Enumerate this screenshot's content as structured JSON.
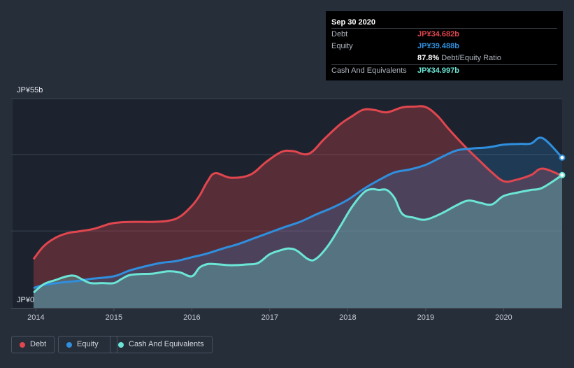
{
  "tooltip": {
    "date": "Sep 30 2020",
    "debt_label": "Debt",
    "debt_value": "JP¥34.682b",
    "equity_label": "Equity",
    "equity_value": "JP¥39.488b",
    "ratio_value": "87.8%",
    "ratio_label": "Debt/Equity Ratio",
    "cash_label": "Cash And Equivalents",
    "cash_value": "JP¥34.997b"
  },
  "legend": {
    "debt": "Debt",
    "equity": "Equity",
    "cash": "Cash And Equivalents"
  },
  "colors": {
    "debt": "#e0464e",
    "equity": "#2f8fde",
    "cash": "#6be6d6",
    "background": "#262e3a"
  },
  "chart_data": {
    "type": "area",
    "title": "",
    "xlabel": "",
    "ylabel": "",
    "ylim": [
      0,
      55
    ],
    "y_unit": "JP¥ billions",
    "y_tick_labels": [
      "JP¥0",
      "JP¥55b"
    ],
    "x_ticks": [
      2014,
      2015,
      2016,
      2017,
      2018,
      2019,
      2020
    ],
    "x_tick_labels": [
      "2014",
      "2015",
      "2016",
      "2017",
      "2018",
      "2019",
      "2020"
    ],
    "xlim": [
      2013.97,
      2020.75
    ],
    "series": [
      {
        "name": "Debt",
        "x": [
          2013.97,
          2014.1,
          2014.25,
          2014.4,
          2014.55,
          2014.75,
          2014.95,
          2015.1,
          2015.3,
          2015.5,
          2015.7,
          2015.85,
          2016.0,
          2016.1,
          2016.2,
          2016.3,
          2016.5,
          2016.75,
          2016.95,
          2017.15,
          2017.3,
          2017.5,
          2017.7,
          2017.9,
          2018.05,
          2018.2,
          2018.35,
          2018.5,
          2018.7,
          2018.85,
          2019.0,
          2019.15,
          2019.3,
          2019.5,
          2019.7,
          2019.85,
          2020.0,
          2020.15,
          2020.35,
          2020.5,
          2020.75
        ],
        "values": [
          12.8,
          16.2,
          18.4,
          19.6,
          20.1,
          20.8,
          22.1,
          22.5,
          22.6,
          22.6,
          22.9,
          24.0,
          26.8,
          29.5,
          33.2,
          35.4,
          34.2,
          35.0,
          38.3,
          41.0,
          41.2,
          40.5,
          44.4,
          48.2,
          50.3,
          52.1,
          52.0,
          51.4,
          52.7,
          52.9,
          52.8,
          50.5,
          46.9,
          42.5,
          38.5,
          35.6,
          33.3,
          33.6,
          34.9,
          36.6,
          34.7
        ]
      },
      {
        "name": "Equity",
        "x": [
          2013.97,
          2014.1,
          2014.3,
          2014.5,
          2014.7,
          2015.0,
          2015.2,
          2015.4,
          2015.6,
          2015.8,
          2016.0,
          2016.2,
          2016.4,
          2016.6,
          2016.8,
          2017.0,
          2017.2,
          2017.4,
          2017.6,
          2017.8,
          2018.0,
          2018.2,
          2018.4,
          2018.6,
          2018.8,
          2019.0,
          2019.2,
          2019.4,
          2019.6,
          2019.8,
          2020.0,
          2020.2,
          2020.35,
          2020.5,
          2020.75
        ],
        "values": [
          5.2,
          6.0,
          6.6,
          7.0,
          7.6,
          8.3,
          9.8,
          10.9,
          11.8,
          12.3,
          13.3,
          14.3,
          15.6,
          16.8,
          18.3,
          19.8,
          21.3,
          22.7,
          24.6,
          26.3,
          28.4,
          31.2,
          33.6,
          35.6,
          36.4,
          37.6,
          39.6,
          41.4,
          41.9,
          42.2,
          42.9,
          43.1,
          43.2,
          44.6,
          39.5
        ]
      },
      {
        "name": "Cash And Equivalents",
        "x": [
          2013.97,
          2014.1,
          2014.25,
          2014.4,
          2014.5,
          2014.6,
          2014.7,
          2014.85,
          2015.0,
          2015.1,
          2015.2,
          2015.35,
          2015.5,
          2015.7,
          2015.85,
          2016.0,
          2016.1,
          2016.2,
          2016.3,
          2016.5,
          2016.7,
          2016.85,
          2017.0,
          2017.15,
          2017.25,
          2017.35,
          2017.5,
          2017.6,
          2017.75,
          2017.9,
          2018.05,
          2018.2,
          2018.3,
          2018.4,
          2018.5,
          2018.6,
          2018.7,
          2018.85,
          2019.0,
          2019.2,
          2019.4,
          2019.55,
          2019.7,
          2019.85,
          2020.0,
          2020.2,
          2020.35,
          2020.5,
          2020.75
        ],
        "values": [
          4.0,
          6.2,
          7.3,
          8.3,
          8.4,
          7.4,
          6.5,
          6.5,
          6.5,
          7.6,
          8.6,
          8.9,
          9.0,
          9.6,
          9.3,
          8.3,
          10.6,
          11.5,
          11.5,
          11.2,
          11.4,
          11.8,
          14.1,
          15.2,
          15.6,
          15.0,
          12.7,
          13.0,
          16.4,
          21.3,
          26.4,
          30.2,
          31.2,
          31.0,
          31.0,
          28.9,
          24.7,
          23.7,
          23.2,
          24.8,
          27.0,
          28.2,
          27.6,
          27.2,
          29.4,
          30.4,
          31.0,
          31.6,
          34.9
        ]
      }
    ]
  }
}
